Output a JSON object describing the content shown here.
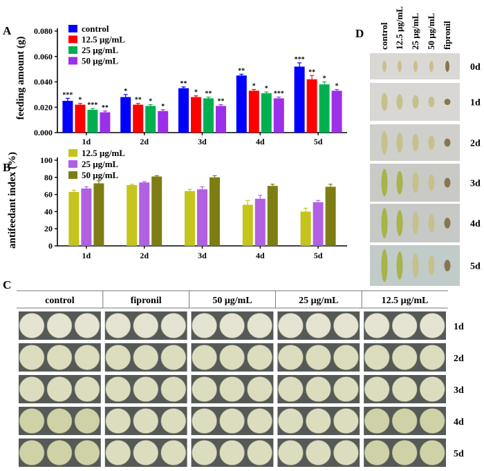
{
  "panel_labels": {
    "a": "A",
    "b": "B",
    "c": "C",
    "d": "D"
  },
  "chart_data": [
    {
      "id": "A",
      "type": "bar",
      "title": "",
      "xlabel": "",
      "ylabel": "feeding amount (g)",
      "ylim": [
        0,
        0.08
      ],
      "yticks": [
        "0.000",
        "0.020",
        "0.040",
        "0.060",
        "0.080"
      ],
      "ytick_values": [
        0,
        0.02,
        0.04,
        0.06,
        0.08
      ],
      "legend_position": "top-left",
      "categories": [
        "1d",
        "2d",
        "3d",
        "4d",
        "5d"
      ],
      "series": [
        {
          "name": "control",
          "color": "#0000ff",
          "values": [
            0.025,
            0.028,
            0.035,
            0.045,
            0.052
          ],
          "errors": [
            0.002,
            0.002,
            0.001,
            0.001,
            0.003
          ],
          "sig": [
            "***",
            "*",
            "**",
            "**",
            "***"
          ]
        },
        {
          "name": "12.5 μg/mL",
          "color": "#ff0000",
          "values": [
            0.022,
            0.022,
            0.028,
            0.033,
            0.042
          ],
          "errors": [
            0.001,
            0.001,
            0.001,
            0.001,
            0.003
          ],
          "sig": [
            "*",
            "**",
            "*",
            "*",
            "**"
          ]
        },
        {
          "name": "25 μg/mL",
          "color": "#00b050",
          "values": [
            0.018,
            0.021,
            0.027,
            0.031,
            0.038
          ],
          "errors": [
            0.001,
            0.001,
            0.001,
            0.001,
            0.002
          ],
          "sig": [
            "***",
            "*",
            "**",
            "*",
            "*"
          ]
        },
        {
          "name": "50 μg/mL",
          "color": "#9b30e8",
          "values": [
            0.016,
            0.017,
            0.021,
            0.027,
            0.033
          ],
          "errors": [
            0.001,
            0.001,
            0.001,
            0.001,
            0.001
          ],
          "sig": [
            "**",
            "*",
            "**",
            "***",
            "*"
          ]
        }
      ]
    },
    {
      "id": "B",
      "type": "bar",
      "title": "",
      "xlabel": "",
      "ylabel": "antifeedant index (%)",
      "ylim": [
        0,
        100
      ],
      "yticks": [
        "0",
        "20",
        "40",
        "60",
        "80",
        "100"
      ],
      "ytick_values": [
        0,
        20,
        40,
        60,
        80,
        100
      ],
      "legend_position": "top-left",
      "categories": [
        "1d",
        "2d",
        "3d",
        "4d",
        "5d"
      ],
      "series": [
        {
          "name": "12.5 μg/mL",
          "color": "#c4c41c",
          "values": [
            63,
            71,
            64,
            48,
            40
          ],
          "errors": [
            2,
            1,
            2,
            5,
            4
          ]
        },
        {
          "name": "25 μg/mL",
          "color": "#b060e0",
          "values": [
            67,
            74,
            66,
            55,
            51
          ],
          "errors": [
            2,
            1,
            3,
            4,
            2
          ]
        },
        {
          "name": "50 μg/mL",
          "color": "#7d7d14",
          "values": [
            73,
            81,
            80,
            70,
            69
          ],
          "errors": [
            3,
            1,
            2,
            2,
            3
          ]
        }
      ]
    }
  ],
  "panel_c": {
    "groups": [
      "control",
      "fipronil",
      "50 μg/mL",
      "25 μg/mL",
      "12.5 μg/mL"
    ],
    "days": [
      "1d",
      "2d",
      "3d",
      "4d",
      "5d"
    ]
  },
  "panel_d": {
    "columns": [
      "control",
      "12.5 μg/mL",
      "25 μg/mL",
      "50 μg/mL",
      "fipronil"
    ],
    "days": [
      "0d",
      "1d",
      "2d",
      "3d",
      "4d",
      "5d"
    ]
  }
}
